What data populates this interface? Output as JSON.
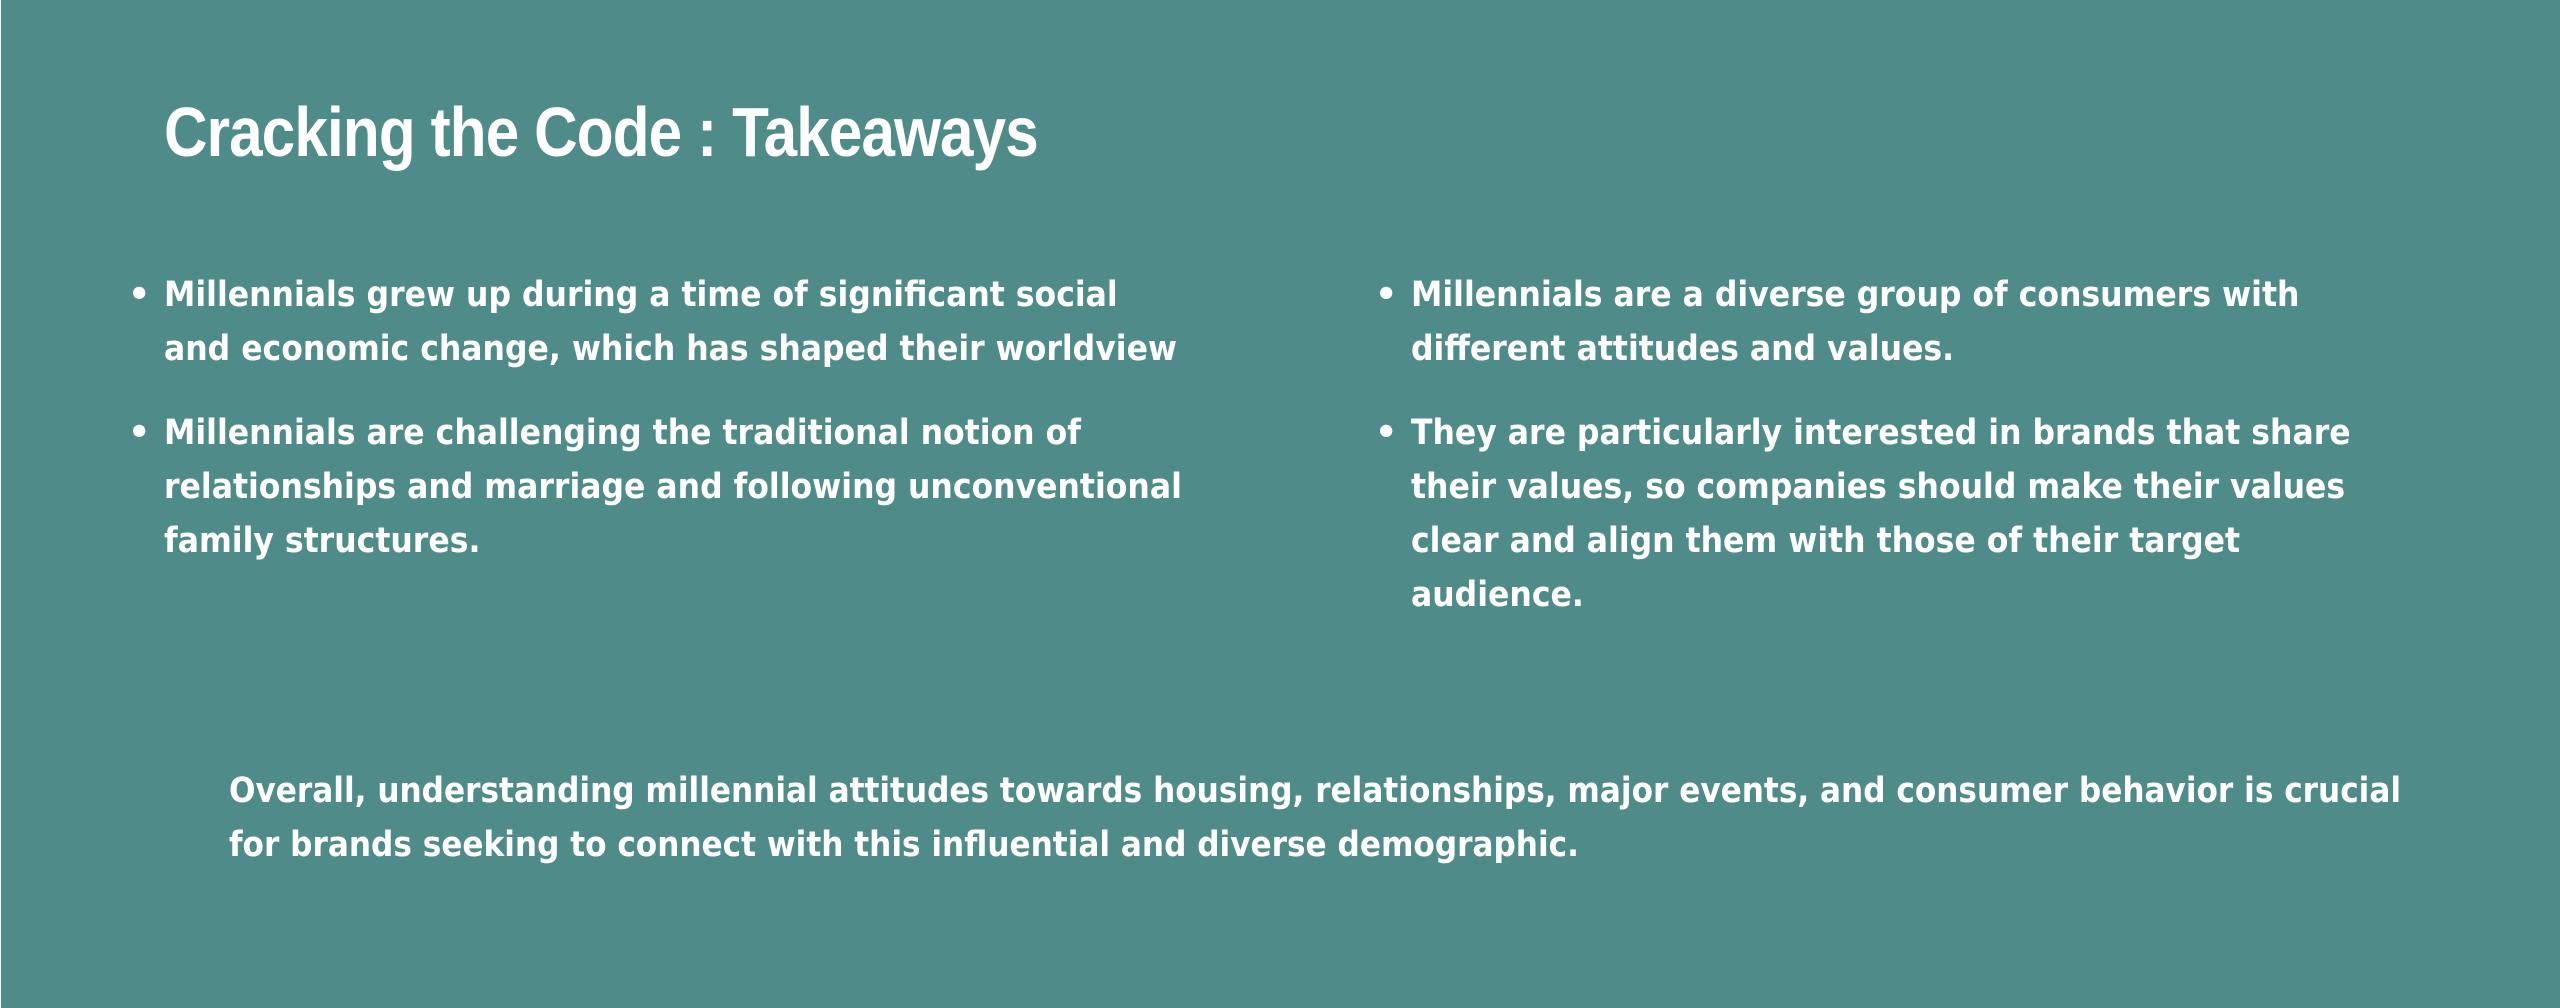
{
  "slide": {
    "background_color": "#4f8c89",
    "text_color": "#ffffff",
    "title": "Cracking the Code : Takeaways",
    "left_bullets": [
      "Millennials grew up during a time of significant social and economic change, which has shaped their worldview",
      "Millennials are challenging the traditional notion of relationships and marriage and following unconventional family structures."
    ],
    "right_bullets": [
      "Millennials are a diverse group of consumers with different attitudes and values.",
      "They are particularly interested in brands that share their values, so companies should make their values clear and align them with those of their target audience."
    ],
    "summary": "Overall, understanding millennial attitudes towards housing, relationships, major events, and consumer behavior is crucial for brands seeking to connect with this influential and diverse demographic."
  }
}
